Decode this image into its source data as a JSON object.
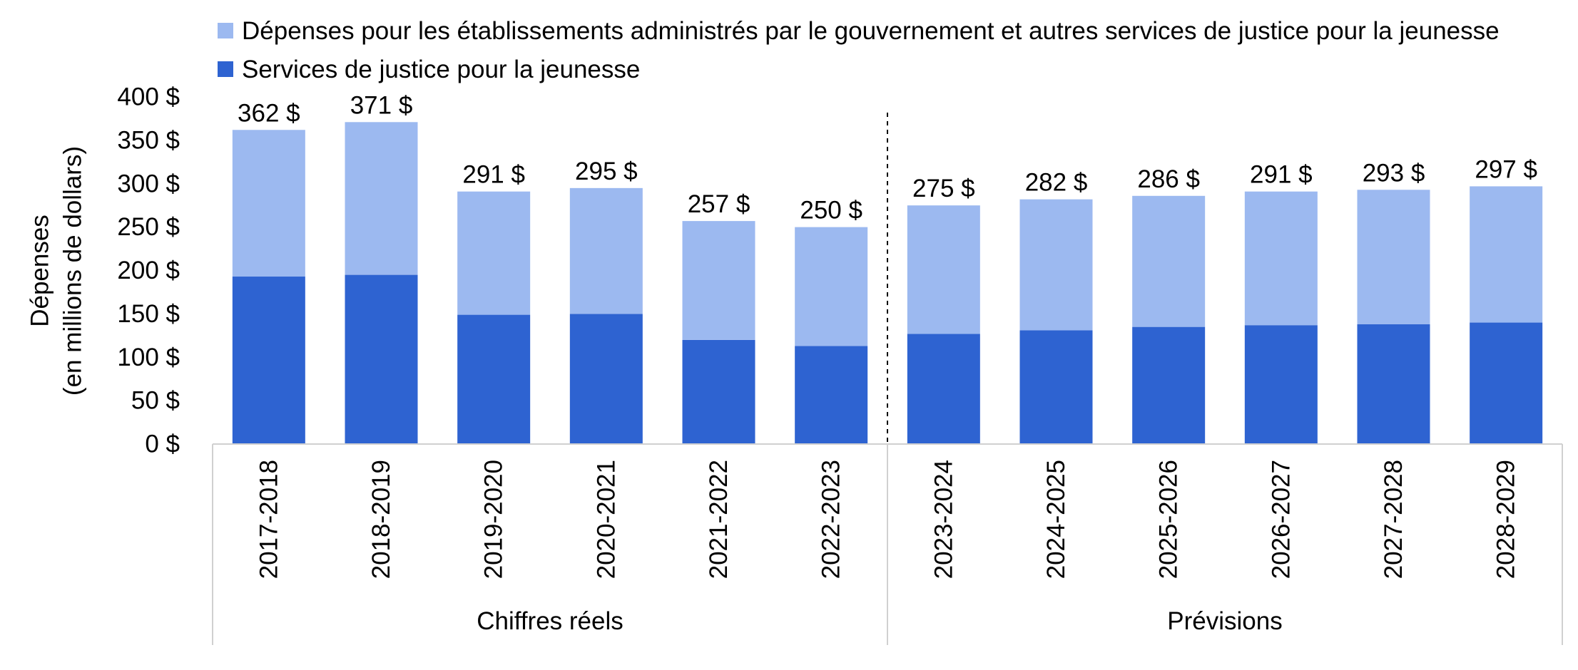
{
  "chart_data": {
    "type": "bar",
    "stacked": true,
    "categories": [
      "2017-2018",
      "2018-2019",
      "2019-2020",
      "2020-2021",
      "2021-2022",
      "2022-2023",
      "2023-2024",
      "2024-2025",
      "2025-2026",
      "2026-2027",
      "2027-2028",
      "2028-2029"
    ],
    "groups": [
      {
        "label": "Chiffres réels",
        "categories": [
          "2017-2018",
          "2018-2019",
          "2019-2020",
          "2020-2021",
          "2021-2022",
          "2022-2023"
        ]
      },
      {
        "label": "Prévisions",
        "categories": [
          "2023-2024",
          "2024-2025",
          "2025-2026",
          "2026-2027",
          "2027-2028",
          "2028-2029"
        ]
      }
    ],
    "series": [
      {
        "name": "Services de justice pour la jeunesse",
        "color": "#2e63d1",
        "values": [
          193,
          195,
          149,
          150,
          120,
          113,
          127,
          131,
          135,
          137,
          138,
          140
        ]
      },
      {
        "name": "Dépenses pour les établissements administrés par le gouvernement et autres services de justice pour la jeunesse",
        "color": "#9cb9f0",
        "values": [
          169,
          176,
          142,
          145,
          137,
          137,
          148,
          151,
          151,
          154,
          155,
          157
        ]
      }
    ],
    "totals": [
      362,
      371,
      291,
      295,
      257,
      250,
      275,
      282,
      286,
      291,
      293,
      297
    ],
    "total_labels": [
      "362 $",
      "371 $",
      "291 $",
      "295 $",
      "257 $",
      "250 $",
      "275 $",
      "282 $",
      "286 $",
      "291 $",
      "293 $",
      "297 $"
    ],
    "yticks": [
      0,
      50,
      100,
      150,
      200,
      250,
      300,
      350,
      400
    ],
    "ytick_labels": [
      "0 $",
      "50 $",
      "100 $",
      "150 $",
      "200 $",
      "250 $",
      "300 $",
      "350 $",
      "400 $"
    ],
    "ylabel": [
      "Dépenses",
      "(en millions de dollars)"
    ],
    "xlabel": "",
    "title": "",
    "ylim": [
      0,
      400
    ],
    "grid": false,
    "legend_position": "top"
  },
  "legend": [
    {
      "label": "Dépenses pour les établissements administrés par le gouvernement et autres services de justice pour la jeunesse",
      "color": "#9cb9f0"
    },
    {
      "label": "Services de justice pour la jeunesse",
      "color": "#2e63d1"
    }
  ]
}
